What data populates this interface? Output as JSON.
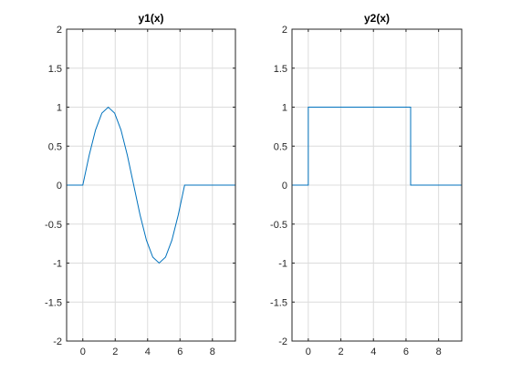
{
  "chart_data": [
    {
      "type": "line",
      "title": "y1(x)",
      "xlabel": "",
      "ylabel": "",
      "xlim": [
        -1,
        9.42
      ],
      "ylim": [
        -2,
        2
      ],
      "xticks": [
        0,
        2,
        4,
        6,
        8
      ],
      "xtick_labels": [
        "0",
        "2",
        "4",
        "6",
        "8"
      ],
      "yticks": [
        -2,
        -1.5,
        -1,
        -0.5,
        0,
        0.5,
        1,
        1.5,
        2
      ],
      "ytick_labels": [
        "-2",
        "-1.5",
        "-1",
        "-0.5",
        "0",
        "0.5",
        "1",
        "1.5",
        "2"
      ],
      "grid": true,
      "legend": null,
      "series_color": "#0072bd",
      "series": [
        {
          "x": [
            -1,
            0,
            0.3927,
            0.7854,
            1.1781,
            1.5708,
            1.9635,
            2.3562,
            2.7489,
            3.1416,
            3.5343,
            3.927,
            4.3197,
            4.7124,
            5.1051,
            5.4978,
            5.8905,
            6.2832,
            9.42
          ],
          "y": [
            0,
            0,
            0.3827,
            0.7071,
            0.9239,
            1,
            0.9239,
            0.7071,
            0.3827,
            0,
            -0.3827,
            -0.7071,
            -0.9239,
            -1,
            -0.9239,
            -0.7071,
            -0.3827,
            0,
            0
          ]
        }
      ]
    },
    {
      "type": "line",
      "title": "y2(x)",
      "xlabel": "",
      "ylabel": "",
      "xlim": [
        -1,
        9.42
      ],
      "ylim": [
        -2,
        2
      ],
      "xticks": [
        0,
        2,
        4,
        6,
        8
      ],
      "xtick_labels": [
        "0",
        "2",
        "4",
        "6",
        "8"
      ],
      "yticks": [
        -2,
        -1.5,
        -1,
        -0.5,
        0,
        0.5,
        1,
        1.5,
        2
      ],
      "ytick_labels": [
        "-2",
        "-1.5",
        "-1",
        "-0.5",
        "0",
        "0.5",
        "1",
        "1.5",
        "2"
      ],
      "grid": true,
      "legend": null,
      "series_color": "#0072bd",
      "series": [
        {
          "x": [
            -1,
            0,
            0,
            6.2832,
            6.2832,
            9.42
          ],
          "y": [
            0,
            0,
            1,
            1,
            0,
            0
          ]
        }
      ]
    }
  ]
}
